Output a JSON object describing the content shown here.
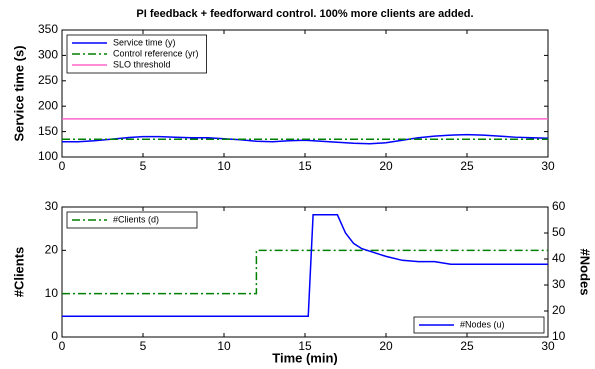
{
  "chart_data": [
    {
      "type": "line",
      "title": "PI feedback + feedforward control. 100% more clients are added.",
      "ylabel": "Service time (s)",
      "xlim": [
        0,
        30
      ],
      "xticks": [
        0,
        5,
        10,
        15,
        20,
        25,
        30
      ],
      "ylim": [
        100,
        350
      ],
      "yticks": [
        100,
        150,
        200,
        250,
        300,
        350
      ],
      "legend": "upper left",
      "series": [
        {
          "name": "Service time (y)",
          "color": "#0000ff",
          "linestyle": "solid",
          "x": [
            0,
            1,
            2,
            3,
            4,
            5,
            6,
            7,
            8,
            9,
            10,
            11,
            12,
            13,
            14,
            15,
            16,
            17,
            18,
            19,
            20,
            21,
            22,
            23,
            24,
            25,
            26,
            27,
            28,
            29,
            30
          ],
          "values": [
            130,
            130,
            132,
            135,
            138,
            140,
            140,
            139,
            138,
            138,
            136,
            134,
            131,
            130,
            132,
            133,
            131,
            129,
            127,
            126,
            128,
            133,
            138,
            141,
            143,
            144,
            143,
            141,
            139,
            138,
            137
          ]
        },
        {
          "name": "Control reference (yr)",
          "color": "#008000",
          "linestyle": "dashdot",
          "x": [
            0,
            30
          ],
          "values": [
            135,
            135
          ]
        },
        {
          "name": "SLO threshold",
          "color": "#ff66cc",
          "linestyle": "solid",
          "x": [
            0,
            30
          ],
          "values": [
            175,
            175
          ]
        }
      ]
    },
    {
      "type": "line",
      "xlabel": "Time (min)",
      "ylabel": "#Clients",
      "y2label": "#Nodes",
      "xlim": [
        0,
        30
      ],
      "xticks": [
        0,
        5,
        10,
        15,
        20,
        25,
        30
      ],
      "ylim": [
        0,
        30
      ],
      "yticks": [
        0,
        10,
        20,
        30
      ],
      "y2lim": [
        10,
        60
      ],
      "y2ticks": [
        10,
        20,
        30,
        40,
        50,
        60
      ],
      "series": [
        {
          "name": "#Clients (d)",
          "color": "#008000",
          "linestyle": "dashdot",
          "legend": "upper left",
          "x": [
            0,
            12,
            12,
            30
          ],
          "values": [
            10,
            10,
            20,
            20
          ]
        },
        {
          "name": "#Nodes (u)",
          "color": "#0000ff",
          "linestyle": "solid",
          "legend": "lower right",
          "axis": "y2",
          "x": [
            0,
            15.2,
            15.5,
            17,
            17.5,
            18,
            18.5,
            19,
            20,
            21,
            22,
            23,
            24,
            25,
            30
          ],
          "values": [
            18,
            18,
            57,
            57,
            50,
            46,
            44,
            43,
            41,
            39.5,
            39,
            39,
            38,
            38,
            38
          ]
        }
      ]
    }
  ]
}
